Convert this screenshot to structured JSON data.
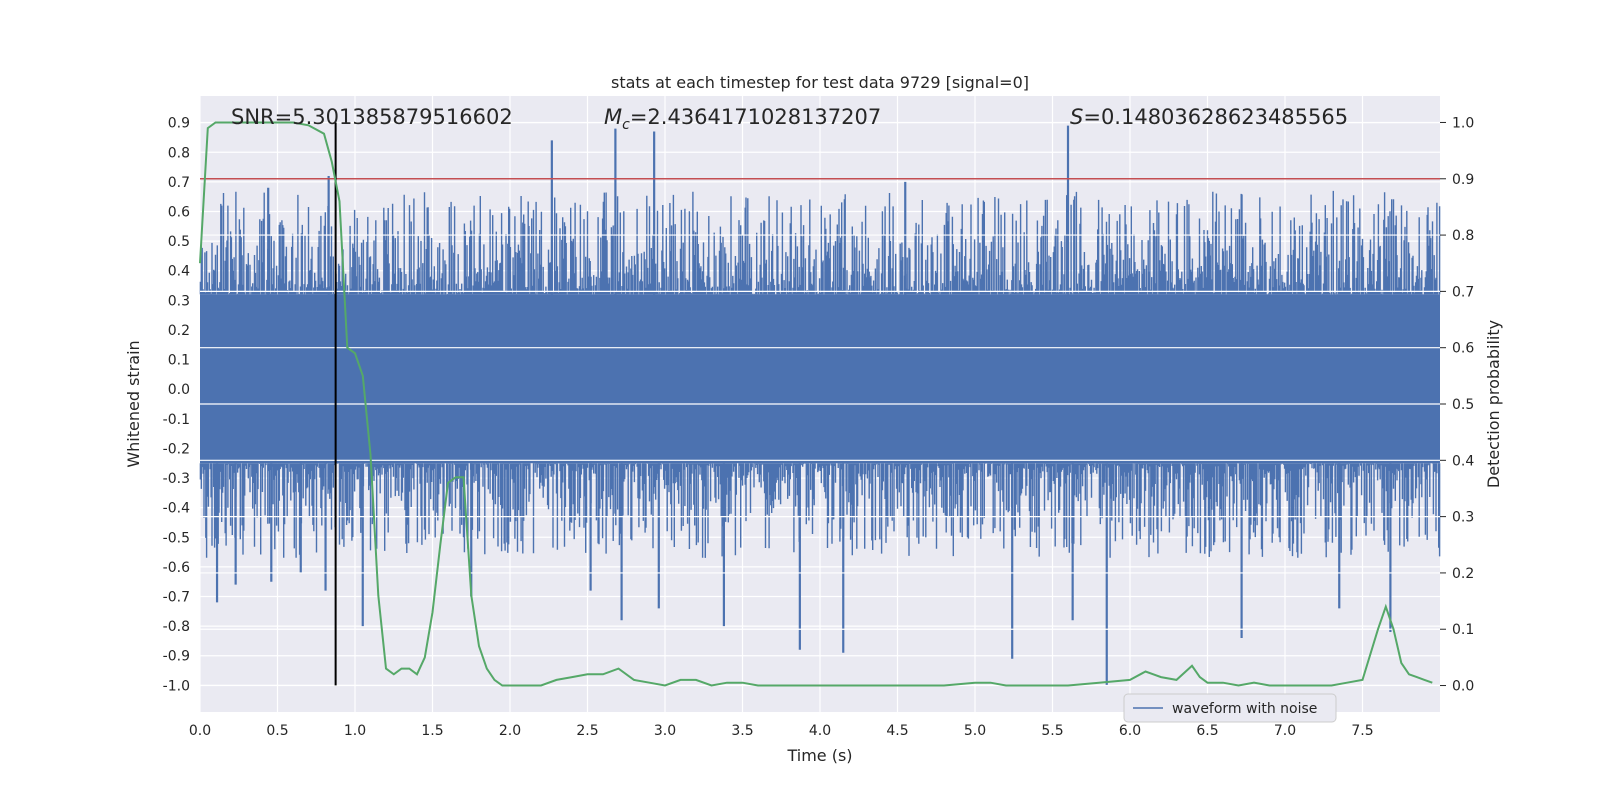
{
  "chart_data": {
    "type": "line",
    "title": "stats at each timestep for test data 9729 [signal=0]",
    "xlabel": "Time (s)",
    "ylabel_left": "Whitened strain",
    "ylabel_right": "Detection probability",
    "xlim": [
      0.0,
      8.0
    ],
    "ylim_left": [
      -1.09,
      0.99
    ],
    "ylim_right": [
      -0.047,
      1.047
    ],
    "x_ticks": [
      "0.0",
      "0.5",
      "1.0",
      "1.5",
      "2.0",
      "2.5",
      "3.0",
      "3.5",
      "4.0",
      "4.5",
      "5.0",
      "5.5",
      "6.0",
      "6.5",
      "7.0",
      "7.5"
    ],
    "y_left_ticks": [
      "0.9",
      "0.8",
      "0.7",
      "0.6",
      "0.5",
      "0.4",
      "0.3",
      "0.2",
      "0.1",
      "0.0",
      "-0.1",
      "-0.2",
      "-0.3",
      "-0.4",
      "-0.5",
      "-0.6",
      "-0.7",
      "-0.8",
      "-0.9",
      "-1.0"
    ],
    "y_right_ticks": [
      "1.0",
      "0.9",
      "0.8",
      "0.7",
      "0.6",
      "0.5",
      "0.4",
      "0.3",
      "0.2",
      "0.1",
      "0.0"
    ],
    "annotations": {
      "snr": "SNR=5.301385879516602",
      "mc_symbol": "M",
      "mc_sub": "c",
      "mc_value": "=2.4364171028137207",
      "s_symbol": "S",
      "s_value": "=0.14803628623485565"
    },
    "threshold": 0.9,
    "threshold_color": "#c44e52",
    "marker_time": 0.875,
    "legend": {
      "label": "waveform with noise",
      "position": "lower right"
    },
    "series": [
      {
        "name": "waveform with noise",
        "axis": "left",
        "color": "#4c72b0",
        "envelope": {
          "core_upper": 0.32,
          "core_lower": -0.25
        },
        "spikes": [
          {
            "t": 0.11,
            "v": -0.72
          },
          {
            "t": 0.23,
            "v": -0.66
          },
          {
            "t": 0.44,
            "v": 0.68
          },
          {
            "t": 0.46,
            "v": -0.65
          },
          {
            "t": 0.65,
            "v": -0.62
          },
          {
            "t": 0.83,
            "v": 0.72
          },
          {
            "t": 0.81,
            "v": -0.68
          },
          {
            "t": 1.05,
            "v": -0.8
          },
          {
            "t": 1.75,
            "v": -0.7
          },
          {
            "t": 2.27,
            "v": 0.84
          },
          {
            "t": 2.52,
            "v": -0.68
          },
          {
            "t": 2.68,
            "v": 0.88
          },
          {
            "t": 2.72,
            "v": -0.78
          },
          {
            "t": 2.93,
            "v": 0.87
          },
          {
            "t": 2.96,
            "v": -0.74
          },
          {
            "t": 3.38,
            "v": -0.8
          },
          {
            "t": 3.87,
            "v": -0.88
          },
          {
            "t": 4.15,
            "v": -0.89
          },
          {
            "t": 4.55,
            "v": 0.7
          },
          {
            "t": 5.24,
            "v": -0.91
          },
          {
            "t": 5.6,
            "v": 0.89
          },
          {
            "t": 5.63,
            "v": -0.78
          },
          {
            "t": 5.85,
            "v": -1.0
          },
          {
            "t": 6.72,
            "v": -0.84
          },
          {
            "t": 7.35,
            "v": -0.74
          },
          {
            "t": 7.68,
            "v": -0.82
          }
        ]
      },
      {
        "name": "detection probability",
        "axis": "right",
        "color": "#55a868",
        "t": [
          0.0,
          0.05,
          0.1,
          0.2,
          0.3,
          0.4,
          0.5,
          0.6,
          0.7,
          0.8,
          0.85,
          0.9,
          0.95,
          1.0,
          1.05,
          1.1,
          1.15,
          1.2,
          1.25,
          1.3,
          1.35,
          1.4,
          1.45,
          1.5,
          1.55,
          1.6,
          1.65,
          1.7,
          1.75,
          1.8,
          1.85,
          1.9,
          1.95,
          2.0,
          2.1,
          2.2,
          2.3,
          2.4,
          2.5,
          2.6,
          2.7,
          2.8,
          2.9,
          3.0,
          3.1,
          3.2,
          3.3,
          3.4,
          3.5,
          3.6,
          3.7,
          3.8,
          3.9,
          4.0,
          4.2,
          4.4,
          4.6,
          4.8,
          5.0,
          5.1,
          5.2,
          5.4,
          5.6,
          5.8,
          6.0,
          6.1,
          6.15,
          6.2,
          6.3,
          6.4,
          6.45,
          6.5,
          6.6,
          6.7,
          6.8,
          6.9,
          7.0,
          7.1,
          7.2,
          7.3,
          7.4,
          7.5,
          7.6,
          7.65,
          7.7,
          7.75,
          7.8,
          7.85,
          7.9,
          7.95
        ],
        "p": [
          0.75,
          0.99,
          1.0,
          1.0,
          1.0,
          1.0,
          1.0,
          1.0,
          0.995,
          0.98,
          0.93,
          0.86,
          0.6,
          0.59,
          0.55,
          0.41,
          0.16,
          0.03,
          0.02,
          0.03,
          0.03,
          0.02,
          0.05,
          0.13,
          0.25,
          0.36,
          0.37,
          0.37,
          0.16,
          0.07,
          0.03,
          0.01,
          0.0,
          0.0,
          0.0,
          0.0,
          0.01,
          0.015,
          0.02,
          0.02,
          0.03,
          0.01,
          0.005,
          0.0,
          0.01,
          0.01,
          0.0,
          0.005,
          0.005,
          0.0,
          0.0,
          0.0,
          0.0,
          0.0,
          0.0,
          0.0,
          0.0,
          0.0,
          0.005,
          0.005,
          0.0,
          0.0,
          0.0,
          0.005,
          0.01,
          0.025,
          0.02,
          0.015,
          0.01,
          0.035,
          0.015,
          0.005,
          0.005,
          0.0,
          0.005,
          0.0,
          0.0,
          0.0,
          0.0,
          0.0,
          0.005,
          0.01,
          0.1,
          0.14,
          0.1,
          0.04,
          0.02,
          0.015,
          0.01,
          0.005
        ]
      }
    ]
  }
}
